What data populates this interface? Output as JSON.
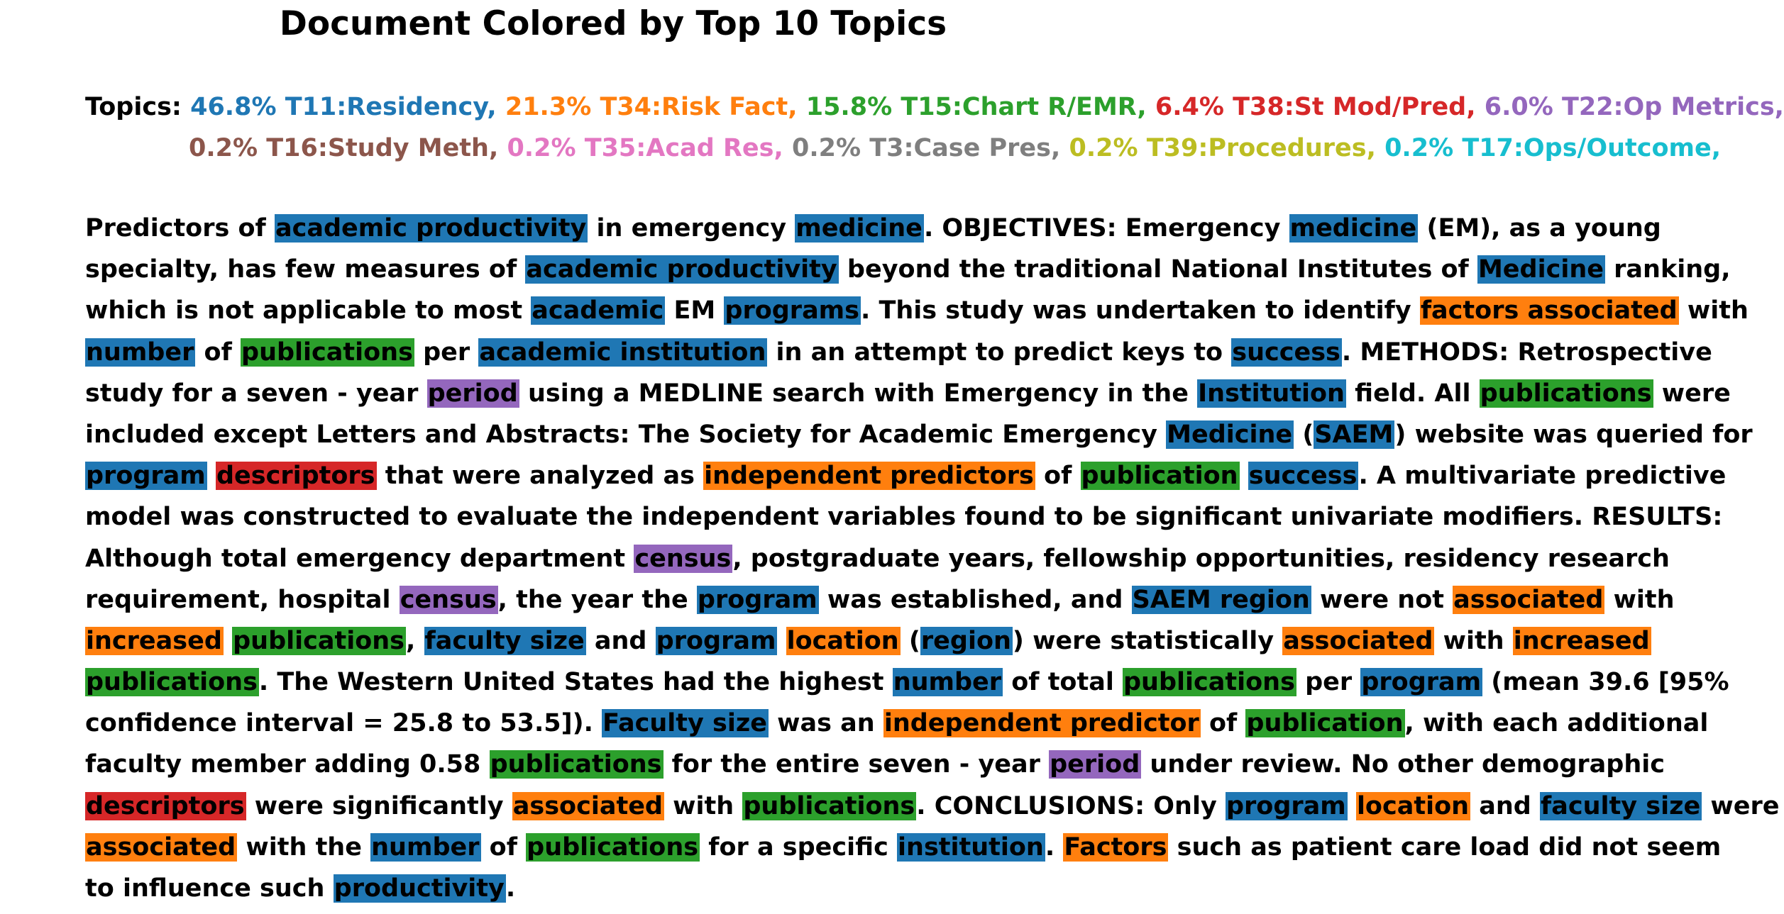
{
  "title": "Document Colored by Top 10 Topics",
  "topics_label": "Topics:",
  "topic_colors": {
    "T11": "#1f77b4",
    "T34": "#ff7f0e",
    "T15": "#2ca02c",
    "T38": "#d62728",
    "T22": "#9467bd",
    "T16": "#8c564b",
    "T35": "#e377c2",
    "T3": "#7f7f7f",
    "T39": "#bcbd22",
    "T17": "#17becf"
  },
  "topics": [
    {
      "id": "T11",
      "label": "46.8% T11:Residency,"
    },
    {
      "id": "T34",
      "label": "21.3% T34:Risk Fact,"
    },
    {
      "id": "T15",
      "label": "15.8% T15:Chart R/EMR,"
    },
    {
      "id": "T38",
      "label": "6.4% T38:St Mod/Pred,"
    },
    {
      "id": "T22",
      "label": "6.0% T22:Op Metrics,"
    },
    {
      "id": "T16",
      "label": "0.2% T16:Study Meth,"
    },
    {
      "id": "T35",
      "label": "0.2% T35:Acad Res,"
    },
    {
      "id": "T3",
      "label": "0.2% T3:Case Pres,"
    },
    {
      "id": "T39",
      "label": "0.2% T39:Procedures,"
    },
    {
      "id": "T17",
      "label": "0.2% T17:Ops/Outcome,"
    }
  ],
  "document_lines": [
    [
      [
        "Predictors of ",
        null
      ],
      [
        "academic productivity",
        "T11"
      ],
      [
        " in emergency ",
        null
      ],
      [
        "medicine",
        "T11"
      ],
      [
        ". OBJECTIVES: Emergency ",
        null
      ],
      [
        "medicine",
        "T11"
      ],
      [
        " (EM), as a young",
        null
      ]
    ],
    [
      [
        "specialty, has few measures of ",
        null
      ],
      [
        "academic productivity",
        "T11"
      ],
      [
        " beyond the traditional National Institutes of ",
        null
      ],
      [
        "Medicine",
        "T11"
      ],
      [
        " ranking,",
        null
      ]
    ],
    [
      [
        "which is not applicable to most ",
        null
      ],
      [
        "academic",
        "T11"
      ],
      [
        " EM ",
        null
      ],
      [
        "programs",
        "T11"
      ],
      [
        ". This study was undertaken to identify ",
        null
      ],
      [
        "factors associated",
        "T34"
      ],
      [
        " with",
        null
      ]
    ],
    [
      [
        "number",
        "T11"
      ],
      [
        " of ",
        null
      ],
      [
        "publications",
        "T15"
      ],
      [
        " per ",
        null
      ],
      [
        "academic institution",
        "T11"
      ],
      [
        " in an attempt to predict keys to ",
        null
      ],
      [
        "success",
        "T11"
      ],
      [
        ". METHODS: Retrospective",
        null
      ]
    ],
    [
      [
        "study for a seven - year ",
        null
      ],
      [
        "period",
        "T22"
      ],
      [
        " using a MEDLINE search with Emergency in the ",
        null
      ],
      [
        "Institution",
        "T11"
      ],
      [
        " field. All ",
        null
      ],
      [
        "publications",
        "T15"
      ],
      [
        " were",
        null
      ]
    ],
    [
      [
        "included except Letters and Abstracts: The Society for Academic Emergency ",
        null
      ],
      [
        "Medicine",
        "T11"
      ],
      [
        " (",
        null
      ],
      [
        "SAEM",
        "T11"
      ],
      [
        ") website was queried for",
        null
      ]
    ],
    [
      [
        "program",
        "T11"
      ],
      [
        " ",
        null
      ],
      [
        "descriptors",
        "T38"
      ],
      [
        " that were analyzed as ",
        null
      ],
      [
        "independent predictors",
        "T34"
      ],
      [
        " of ",
        null
      ],
      [
        "publication",
        "T15"
      ],
      [
        " ",
        null
      ],
      [
        "success",
        "T11"
      ],
      [
        ". A multivariate predictive",
        null
      ]
    ],
    [
      [
        "model was constructed to evaluate the independent variables found to be significant univariate modifiers. RESULTS:",
        null
      ]
    ],
    [
      [
        "Although total emergency department ",
        null
      ],
      [
        "census",
        "T22"
      ],
      [
        ", postgraduate years, fellowship opportunities, residency research",
        null
      ]
    ],
    [
      [
        "requirement, hospital ",
        null
      ],
      [
        "census",
        "T22"
      ],
      [
        ", the year the ",
        null
      ],
      [
        "program",
        "T11"
      ],
      [
        " was established, and ",
        null
      ],
      [
        "SAEM region",
        "T11"
      ],
      [
        " were not ",
        null
      ],
      [
        "associated",
        "T34"
      ],
      [
        " with",
        null
      ]
    ],
    [
      [
        "increased",
        "T34"
      ],
      [
        " ",
        null
      ],
      [
        "publications",
        "T15"
      ],
      [
        ", ",
        null
      ],
      [
        "faculty size",
        "T11"
      ],
      [
        " and ",
        null
      ],
      [
        "program",
        "T11"
      ],
      [
        " ",
        null
      ],
      [
        "location",
        "T34"
      ],
      [
        " (",
        null
      ],
      [
        "region",
        "T11"
      ],
      [
        ") were statistically ",
        null
      ],
      [
        "associated",
        "T34"
      ],
      [
        " with ",
        null
      ],
      [
        "increased",
        "T34"
      ]
    ],
    [
      [
        "publications",
        "T15"
      ],
      [
        ". The Western United States had the highest ",
        null
      ],
      [
        "number",
        "T11"
      ],
      [
        " of total ",
        null
      ],
      [
        "publications",
        "T15"
      ],
      [
        " per ",
        null
      ],
      [
        "program",
        "T11"
      ],
      [
        " (mean 39.6 [95%",
        null
      ]
    ],
    [
      [
        "confidence interval = 25.8 to 53.5]). ",
        null
      ],
      [
        "Faculty size",
        "T11"
      ],
      [
        " was an ",
        null
      ],
      [
        "independent predictor",
        "T34"
      ],
      [
        " of ",
        null
      ],
      [
        "publication",
        "T15"
      ],
      [
        ", with each additional",
        null
      ]
    ],
    [
      [
        "faculty member adding 0.58 ",
        null
      ],
      [
        "publications",
        "T15"
      ],
      [
        " for the entire seven - year ",
        null
      ],
      [
        "period",
        "T22"
      ],
      [
        " under review. No other demographic",
        null
      ]
    ],
    [
      [
        "descriptors",
        "T38"
      ],
      [
        " were significantly ",
        null
      ],
      [
        "associated",
        "T34"
      ],
      [
        " with ",
        null
      ],
      [
        "publications",
        "T15"
      ],
      [
        ". CONCLUSIONS: Only ",
        null
      ],
      [
        "program",
        "T11"
      ],
      [
        " ",
        null
      ],
      [
        "location",
        "T34"
      ],
      [
        " and ",
        null
      ],
      [
        "faculty size",
        "T11"
      ],
      [
        " were",
        null
      ]
    ],
    [
      [
        "associated",
        "T34"
      ],
      [
        " with the ",
        null
      ],
      [
        "number",
        "T11"
      ],
      [
        " of ",
        null
      ],
      [
        "publications",
        "T15"
      ],
      [
        " for a specific ",
        null
      ],
      [
        "institution",
        "T11"
      ],
      [
        ". ",
        null
      ],
      [
        "Factors",
        "T34"
      ],
      [
        " such as patient care load did not seem",
        null
      ]
    ],
    [
      [
        "to influence such ",
        null
      ],
      [
        "productivity",
        "T11"
      ],
      [
        ".",
        null
      ]
    ]
  ]
}
